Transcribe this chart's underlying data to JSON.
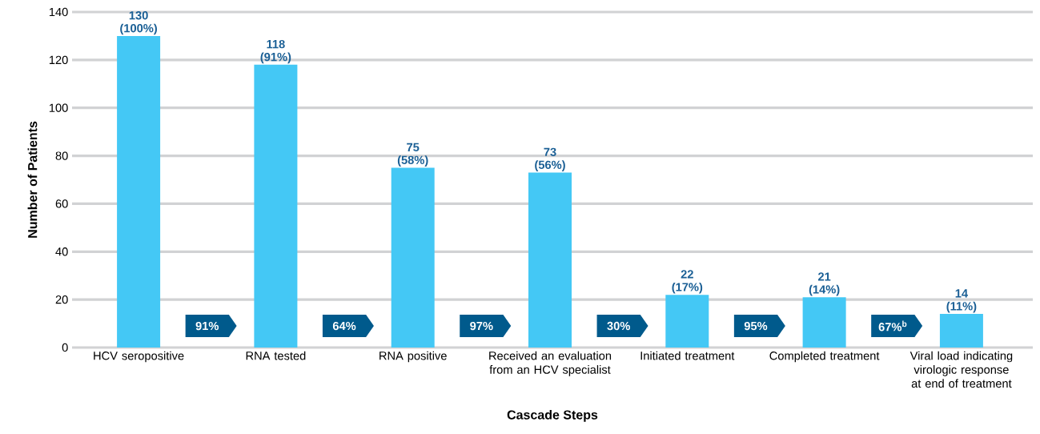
{
  "chart_data": {
    "type": "bar",
    "xlabel": "Cascade Steps",
    "ylabel": "Number of Patients",
    "categories": [
      "HCV seropositive",
      "RNA tested",
      "RNA positive",
      "Received an evaluation from an HCV specialist",
      "Initiated treatment",
      "Completed treatment",
      "Viral load indicating virologic response at end of treatment"
    ],
    "values": [
      130,
      118,
      75,
      73,
      22,
      21,
      14
    ],
    "color": "#44c8f5",
    "value_labels": [
      "130 (100%)",
      "118 (91%)",
      "75 (58%)",
      "73 (56%)",
      "22 (17%)",
      "21 (14%)",
      "14 (11%)"
    ],
    "ylim": [
      0,
      140
    ],
    "yticks": [
      0,
      20,
      40,
      60,
      80,
      100,
      120,
      140
    ],
    "grid": "y",
    "annotations": [
      "91%",
      "64%",
      "97%",
      "30%",
      "95%",
      "67%$^{b}$"
    ]
  }
}
